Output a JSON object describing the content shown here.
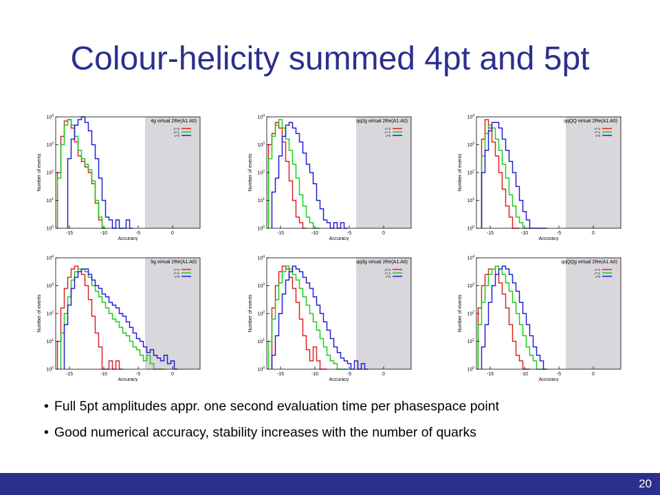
{
  "slide": {
    "title": "Colour-helicity summed 4pt and 5pt",
    "bullets": [
      "Full 5pt amplitudes appr. one second evaluation time per phasespace point",
      "Good numerical accuracy, stability increases with the number of quarks"
    ],
    "page_number": "20",
    "colors": {
      "title": "#2b2f8e",
      "footer": "#2b2f8e",
      "shade": "#d9d6dc"
    }
  },
  "chart_data": [
    {
      "type": "histogram",
      "title": "4g virtual 2Re(A1.A0)",
      "xlabel": "Accuracy",
      "ylabel": "Number of events",
      "xlim": [
        -17,
        4
      ],
      "ylim": [
        0,
        4
      ],
      "y_scale": "log10",
      "x_ticks": [
        -15,
        -10,
        -5,
        0
      ],
      "y_ticks": [
        "10^0",
        "10^1",
        "10^2",
        "10^3",
        "10^4"
      ],
      "shaded_region": [
        -4,
        4
      ],
      "legend": [
        "ε^-2",
        "ε^-1",
        "ε^0"
      ],
      "series": [
        {
          "color": "#e02020",
          "x": [
            -16.5,
            -16,
            -15.5,
            -15,
            -14.5,
            -14,
            -13.5,
            -13,
            -12.5,
            -12,
            -11.5,
            -11,
            -10.5,
            -10
          ],
          "y": [
            2.0,
            3.3,
            3.85,
            3.9,
            3.6,
            3.1,
            2.6,
            2.4,
            2.2,
            2.0,
            1.6,
            0.9,
            0.3,
            0.0
          ]
        },
        {
          "color": "#19cc19",
          "x": [
            -16.5,
            -16,
            -15.5,
            -15,
            -14.5,
            -14,
            -13.5,
            -13,
            -12.5,
            -12,
            -11.5,
            -11,
            -10.5,
            -10
          ],
          "y": [
            1.8,
            3.0,
            3.7,
            3.9,
            3.7,
            3.3,
            2.8,
            2.5,
            2.3,
            2.1,
            1.7,
            1.0,
            0.4,
            0.0
          ]
        },
        {
          "color": "#1f1fd6",
          "x": [
            -15,
            -14.5,
            -14,
            -13.5,
            -13,
            -12.5,
            -12,
            -11.5,
            -11,
            -10.5,
            -10,
            -9.5,
            -9,
            -8.5,
            -8,
            -7.5,
            -7,
            -6.5,
            -6
          ],
          "y": [
            2.5,
            3.2,
            3.7,
            3.9,
            4.0,
            3.8,
            3.5,
            3.0,
            2.5,
            1.8,
            1.0,
            0.4,
            0.3,
            0.0,
            0.3,
            0.0,
            0.0,
            0.3,
            0.0
          ]
        }
      ]
    },
    {
      "type": "histogram",
      "title": "qq2g virtual 2Re(A1.A0)",
      "xlabel": "Accuracy",
      "ylabel": "Number of events",
      "xlim": [
        -17,
        4
      ],
      "ylim": [
        0,
        4
      ],
      "y_scale": "log10",
      "x_ticks": [
        -15,
        -10,
        -5,
        0
      ],
      "y_ticks": [
        "10^0",
        "10^1",
        "10^2",
        "10^3",
        "10^4"
      ],
      "shaded_region": [
        -4,
        4
      ],
      "legend": [
        "ε^-2",
        "ε^-1",
        "ε^0"
      ],
      "series": [
        {
          "color": "#e02020",
          "x": [
            -16.5,
            -16,
            -15.5,
            -15,
            -14.5,
            -14,
            -13.5,
            -13,
            -12.5,
            -12,
            -11.5
          ],
          "y": [
            3.0,
            3.4,
            3.8,
            3.6,
            3.1,
            2.4,
            1.7,
            1.0,
            0.4,
            0.2,
            0.0
          ]
        },
        {
          "color": "#19cc19",
          "x": [
            -16.5,
            -16,
            -15.5,
            -15,
            -14.5,
            -14,
            -13.5,
            -13,
            -12.5,
            -12,
            -11.5,
            -11,
            -10.5,
            -10,
            -9.5
          ],
          "y": [
            2.5,
            3.3,
            3.7,
            3.9,
            3.6,
            3.2,
            2.8,
            2.3,
            1.8,
            1.2,
            0.8,
            0.4,
            0.2,
            0.0,
            0.0
          ]
        },
        {
          "color": "#1f1fd6",
          "x": [
            -16,
            -15.5,
            -15,
            -14.5,
            -14,
            -13.5,
            -13,
            -12.5,
            -12,
            -11.5,
            -11,
            -10.5,
            -10,
            -9.5,
            -9,
            -8.5,
            -8,
            -7.5,
            -7,
            -6.5,
            -6,
            -5.5
          ],
          "y": [
            1.3,
            1.8,
            2.6,
            3.3,
            3.7,
            3.8,
            3.6,
            3.4,
            3.1,
            2.7,
            2.3,
            2.0,
            1.6,
            1.0,
            0.7,
            0.3,
            0.2,
            0.0,
            0.2,
            0.0,
            0.2,
            0.0
          ]
        }
      ]
    },
    {
      "type": "histogram",
      "title": "qqQQ virtual 2Re(A1.A0)",
      "xlabel": "Accuracy",
      "ylabel": "Number of events",
      "xlim": [
        -17,
        4
      ],
      "ylim": [
        0,
        4
      ],
      "y_scale": "log10",
      "x_ticks": [
        -15,
        -10,
        -5,
        0
      ],
      "y_ticks": [
        "10^0",
        "10^1",
        "10^2",
        "10^3",
        "10^4"
      ],
      "shaded_region": [
        -4,
        4
      ],
      "legend": [
        "ε^-2",
        "ε^-1",
        "ε^0"
      ],
      "series": [
        {
          "color": "#e02020",
          "x": [
            -16,
            -15.5,
            -15,
            -14.5,
            -14,
            -13.5,
            -13,
            -12.5,
            -12,
            -11.5,
            -11
          ],
          "y": [
            3.2,
            3.9,
            3.6,
            3.1,
            2.6,
            2.0,
            1.4,
            0.8,
            0.4,
            0.0,
            0.0
          ]
        },
        {
          "color": "#19cc19",
          "x": [
            -16,
            -15.5,
            -15,
            -14.5,
            -14,
            -13.5,
            -13,
            -12.5,
            -12,
            -11.5,
            -11,
            -10.5,
            -10,
            -9.5
          ],
          "y": [
            2.6,
            3.4,
            3.7,
            3.6,
            3.2,
            2.8,
            2.3,
            1.8,
            1.2,
            0.8,
            0.4,
            0.2,
            0.0,
            0.0
          ]
        },
        {
          "color": "#1f1fd6",
          "x": [
            -16,
            -15.5,
            -15,
            -14.5,
            -14,
            -13.5,
            -13,
            -12.5,
            -12,
            -11.5,
            -11,
            -10.5,
            -10,
            -9.5,
            -9,
            -8.5,
            -8,
            -7.5,
            -7
          ],
          "y": [
            2.0,
            2.8,
            3.5,
            3.8,
            3.8,
            3.6,
            3.2,
            2.8,
            2.4,
            2.0,
            1.5,
            1.0,
            0.6,
            0.3,
            0.0,
            0.0,
            0.0,
            0.0,
            0.0
          ]
        }
      ]
    },
    {
      "type": "histogram",
      "title": "5g virtual 2Re(A1.A0)",
      "xlabel": "Accuracy",
      "ylabel": "Number of events",
      "xlim": [
        -17,
        4
      ],
      "ylim": [
        0,
        4
      ],
      "y_scale": "log10",
      "x_ticks": [
        -15,
        -10,
        -5,
        0
      ],
      "y_ticks": [
        "10^0",
        "10^1",
        "10^2",
        "10^3",
        "10^4"
      ],
      "shaded_region": [
        -4,
        4
      ],
      "legend": [
        "ε^-2",
        "ε^-1",
        "ε^0"
      ],
      "series": [
        {
          "color": "#e02020",
          "x": [
            -16.5,
            -16,
            -15.5,
            -15,
            -14.5,
            -14,
            -13.5,
            -13,
            -12.5,
            -12,
            -11.5,
            -11,
            -10.5,
            -10,
            -9.5,
            -9,
            -8.5,
            -8,
            -7.5
          ],
          "y": [
            1.0,
            2.2,
            2.9,
            3.3,
            3.6,
            3.7,
            3.6,
            3.4,
            3.0,
            2.5,
            1.9,
            1.3,
            0.8,
            0.0,
            0.0,
            0.3,
            0.0,
            0.3,
            0.0
          ]
        },
        {
          "color": "#19cc19",
          "x": [
            -16,
            -15.5,
            -15,
            -14.5,
            -14,
            -13.5,
            -13,
            -12.5,
            -12,
            -11.5,
            -11,
            -10.5,
            -10,
            -9.5,
            -9,
            -8.5,
            -8,
            -7.5,
            -7,
            -6.5,
            -6,
            -5.5,
            -5,
            -4.5,
            -4,
            -3.5,
            -3,
            -2.5,
            -2,
            -1.5
          ],
          "y": [
            1.3,
            2.0,
            2.6,
            3.2,
            3.5,
            3.6,
            3.6,
            3.5,
            3.3,
            3.0,
            2.8,
            2.6,
            2.4,
            2.2,
            2.0,
            1.8,
            1.7,
            1.5,
            1.3,
            1.2,
            1.0,
            0.8,
            0.7,
            0.5,
            0.3,
            0.5,
            0.2,
            0.0,
            0.0,
            0.0
          ]
        },
        {
          "color": "#1f1fd6",
          "x": [
            -15.5,
            -15,
            -14.5,
            -14,
            -13.5,
            -13,
            -12.5,
            -12,
            -11.5,
            -11,
            -10.5,
            -10,
            -9.5,
            -9,
            -8.5,
            -8,
            -7.5,
            -7,
            -6.5,
            -6,
            -5.5,
            -5,
            -4.5,
            -4,
            -3.5,
            -3,
            -2.5,
            -2,
            -1.5,
            -1,
            -0.5,
            0,
            0.5
          ],
          "y": [
            1.6,
            2.3,
            2.9,
            3.3,
            3.5,
            3.6,
            3.6,
            3.4,
            3.2,
            3.0,
            2.9,
            2.7,
            2.6,
            2.4,
            2.3,
            2.2,
            2.0,
            1.9,
            1.7,
            1.5,
            1.3,
            1.1,
            1.0,
            0.8,
            0.6,
            0.7,
            0.5,
            0.4,
            0.3,
            0.5,
            0.2,
            0.3,
            0.0
          ]
        }
      ]
    },
    {
      "type": "histogram",
      "title": "qq3g virtual 2Re(A1.A0)",
      "xlabel": "Accuracy",
      "ylabel": "Number of events",
      "xlim": [
        -17,
        4
      ],
      "ylim": [
        0,
        4
      ],
      "y_scale": "log10",
      "x_ticks": [
        -15,
        -10,
        -5,
        0
      ],
      "y_ticks": [
        "10^0",
        "10^1",
        "10^2",
        "10^3",
        "10^4"
      ],
      "shaded_region": [
        -4,
        4
      ],
      "legend": [
        "ε^-2",
        "ε^-1",
        "ε^0"
      ],
      "series": [
        {
          "color": "#e02020",
          "x": [
            -16,
            -15.5,
            -15,
            -14.5,
            -14,
            -13.5,
            -13,
            -12.5,
            -12,
            -11.5,
            -11,
            -10.5,
            -10,
            -9.5,
            -9,
            -8.5
          ],
          "y": [
            2.2,
            3.0,
            3.5,
            3.7,
            3.6,
            3.3,
            2.9,
            2.4,
            1.8,
            1.2,
            0.7,
            0.3,
            0.8,
            0.3,
            0.0,
            0.0
          ]
        },
        {
          "color": "#19cc19",
          "x": [
            -16.5,
            -16,
            -15.5,
            -15,
            -14.5,
            -14,
            -13.5,
            -13,
            -12.5,
            -12,
            -11.5,
            -11,
            -10.5,
            -10,
            -9.5,
            -9,
            -8.5,
            -8,
            -7.5,
            -7,
            -6.5,
            -6,
            -5.5
          ],
          "y": [
            1.0,
            1.8,
            2.5,
            3.1,
            3.5,
            3.7,
            3.6,
            3.4,
            3.2,
            2.9,
            2.6,
            2.3,
            2.0,
            1.7,
            1.4,
            1.1,
            0.8,
            0.5,
            0.3,
            0.2,
            0.0,
            0.0,
            0.0
          ]
        },
        {
          "color": "#1f1fd6",
          "x": [
            -16,
            -15.5,
            -15,
            -14.5,
            -14,
            -13.5,
            -13,
            -12.5,
            -12,
            -11.5,
            -11,
            -10.5,
            -10,
            -9.5,
            -9,
            -8.5,
            -8,
            -7.5,
            -7,
            -6.5,
            -6,
            -5.5,
            -5,
            -4.5,
            -4,
            -3.5,
            -3,
            -2.5
          ],
          "y": [
            0.5,
            1.2,
            2.0,
            2.7,
            3.2,
            3.5,
            3.7,
            3.6,
            3.5,
            3.3,
            3.1,
            2.9,
            2.6,
            2.3,
            2.0,
            1.7,
            1.4,
            1.1,
            0.8,
            0.6,
            0.4,
            0.3,
            0.2,
            0.0,
            0.3,
            0.0,
            0.2,
            0.0
          ]
        }
      ]
    },
    {
      "type": "histogram",
      "title": "qqQQg virtual 2Re(A1.A0)",
      "xlabel": "Accuracy",
      "ylabel": "Number of events",
      "xlim": [
        -17,
        4
      ],
      "ylim": [
        0,
        4
      ],
      "y_scale": "log10",
      "x_ticks": [
        -15,
        -10,
        -5,
        0
      ],
      "y_ticks": [
        "10^0",
        "10^1",
        "10^2",
        "10^3",
        "10^4"
      ],
      "shaded_region": [
        -4,
        4
      ],
      "legend": [
        "ε^-2",
        "ε^-1",
        "ε^0"
      ],
      "series": [
        {
          "color": "#e02020",
          "x": [
            -16.5,
            -16,
            -15.5,
            -15,
            -14.5,
            -14,
            -13.5,
            -13,
            -12.5,
            -12,
            -11.5,
            -11,
            -10.5,
            -10,
            -9.5
          ],
          "y": [
            2.2,
            3.0,
            3.4,
            3.6,
            3.6,
            3.4,
            3.1,
            2.7,
            2.2,
            1.6,
            1.0,
            0.5,
            0.3,
            0.0,
            0.0
          ]
        },
        {
          "color": "#19cc19",
          "x": [
            -16.5,
            -16,
            -15.5,
            -15,
            -14.5,
            -14,
            -13.5,
            -13,
            -12.5,
            -12,
            -11.5,
            -11,
            -10.5,
            -10,
            -9.5,
            -9,
            -8.5,
            -8,
            -7.5
          ],
          "y": [
            1.6,
            2.4,
            3.0,
            3.4,
            3.6,
            3.7,
            3.6,
            3.4,
            3.1,
            2.8,
            2.4,
            2.0,
            1.6,
            1.2,
            0.8,
            0.5,
            0.3,
            0.0,
            0.0
          ]
        },
        {
          "color": "#1f1fd6",
          "x": [
            -16,
            -15.5,
            -15,
            -14.5,
            -14,
            -13.5,
            -13,
            -12.5,
            -12,
            -11.5,
            -11,
            -10.5,
            -10,
            -9.5,
            -9,
            -8.5,
            -8,
            -7.5,
            -7
          ],
          "y": [
            0.8,
            1.6,
            2.4,
            3.0,
            3.4,
            3.6,
            3.7,
            3.6,
            3.4,
            3.1,
            2.8,
            2.4,
            2.0,
            1.6,
            1.2,
            0.8,
            0.5,
            0.3,
            0.0
          ]
        }
      ]
    }
  ]
}
